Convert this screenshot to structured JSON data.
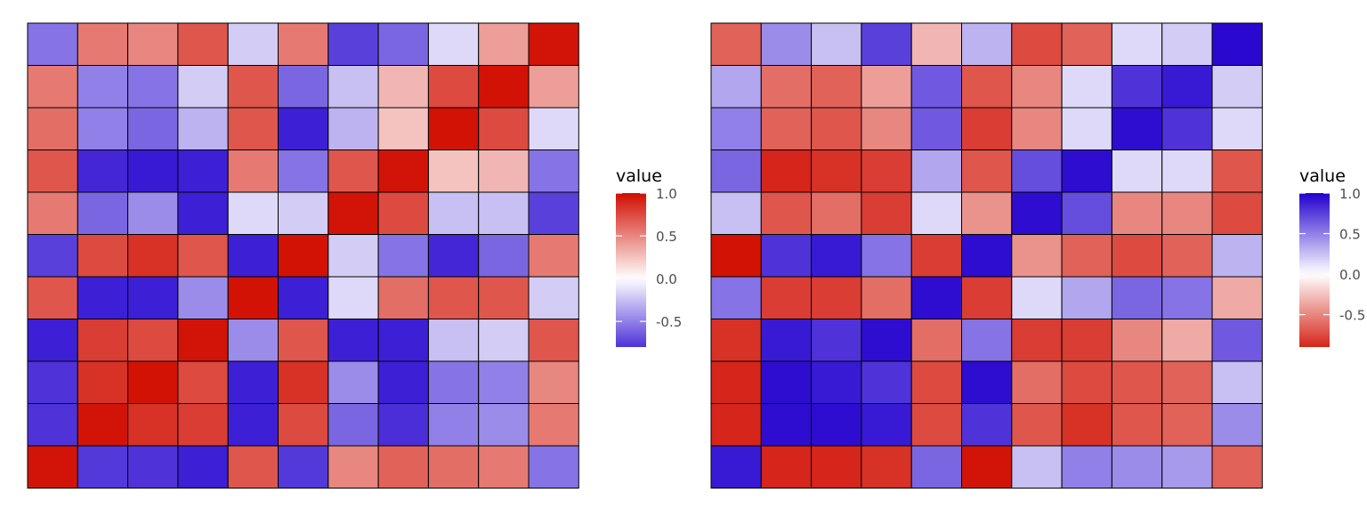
{
  "chart_data": [
    {
      "type": "heatmap",
      "rows": 11,
      "cols": 11,
      "value_range": [
        -0.8,
        1.0
      ],
      "legend": {
        "title": "value",
        "placement": "right",
        "ticks": [
          "1.0",
          "0.5",
          "0.0",
          "-0.5"
        ],
        "tick_values": [
          1.0,
          0.5,
          0.0,
          -0.5
        ],
        "colors": {
          "high": "#d10d00",
          "mid": "#ffffff",
          "low": "#2300cf"
        }
      },
      "values": [
        [
          -0.55,
          0.55,
          0.5,
          0.7,
          -0.2,
          0.55,
          -0.75,
          -0.6,
          -0.15,
          0.4,
          0.97
        ],
        [
          0.55,
          -0.5,
          -0.55,
          -0.2,
          0.7,
          -0.6,
          -0.25,
          0.3,
          0.75,
          0.98,
          0.4
        ],
        [
          0.6,
          -0.5,
          -0.6,
          -0.3,
          0.7,
          -0.88,
          -0.3,
          0.25,
          0.98,
          0.75,
          -0.15
        ],
        [
          0.7,
          -0.85,
          -0.9,
          -0.88,
          0.55,
          -0.55,
          0.7,
          0.97,
          0.25,
          0.3,
          -0.55
        ],
        [
          0.55,
          -0.6,
          -0.45,
          -0.88,
          -0.15,
          -0.2,
          0.97,
          0.75,
          -0.25,
          -0.25,
          -0.75
        ],
        [
          -0.75,
          0.75,
          0.85,
          0.7,
          -0.88,
          0.98,
          -0.2,
          -0.55,
          -0.85,
          -0.6,
          0.55
        ],
        [
          0.7,
          -0.88,
          -0.88,
          -0.45,
          0.98,
          -0.88,
          -0.15,
          0.6,
          0.7,
          0.7,
          -0.2
        ],
        [
          -0.88,
          0.8,
          0.75,
          0.97,
          -0.45,
          0.7,
          -0.88,
          -0.88,
          -0.25,
          -0.2,
          0.7
        ],
        [
          -0.8,
          0.85,
          0.98,
          0.75,
          -0.88,
          0.85,
          -0.45,
          -0.88,
          -0.55,
          -0.5,
          0.5
        ],
        [
          -0.8,
          0.97,
          0.85,
          0.8,
          -0.88,
          0.75,
          -0.6,
          -0.82,
          -0.5,
          -0.45,
          0.55
        ],
        [
          0.97,
          -0.78,
          -0.8,
          -0.88,
          0.7,
          -0.78,
          0.5,
          0.65,
          0.6,
          0.55,
          -0.55
        ]
      ]
    },
    {
      "type": "heatmap",
      "rows": 11,
      "cols": 11,
      "value_range": [
        -0.9,
        1.0
      ],
      "legend": {
        "title": "value",
        "placement": "right",
        "ticks": [
          "1.0",
          "0.5",
          "0.0",
          "-0.5"
        ],
        "tick_values": [
          1.0,
          0.5,
          0.0,
          -0.5
        ],
        "colors": {
          "high": "#2300cf",
          "mid": "#ffffff",
          "low": "#d10d00"
        }
      },
      "values": [
        [
          -0.65,
          0.45,
          0.25,
          0.75,
          -0.3,
          0.3,
          -0.75,
          -0.65,
          0.15,
          0.2,
          0.97
        ],
        [
          0.35,
          -0.6,
          -0.65,
          -0.4,
          0.65,
          -0.7,
          -0.5,
          0.15,
          0.8,
          0.9,
          0.2
        ],
        [
          0.5,
          -0.65,
          -0.7,
          -0.5,
          0.65,
          -0.8,
          -0.5,
          0.15,
          0.95,
          0.8,
          0.15
        ],
        [
          0.6,
          -0.9,
          -0.85,
          -0.8,
          0.35,
          -0.7,
          0.7,
          0.95,
          0.15,
          0.15,
          -0.7
        ],
        [
          0.25,
          -0.7,
          -0.6,
          -0.8,
          0.15,
          -0.45,
          0.95,
          0.7,
          -0.5,
          -0.5,
          -0.75
        ],
        [
          -0.98,
          0.8,
          0.9,
          0.55,
          -0.8,
          0.95,
          -0.45,
          -0.65,
          -0.75,
          -0.65,
          0.3
        ],
        [
          0.55,
          -0.8,
          -0.8,
          -0.6,
          0.95,
          -0.8,
          0.15,
          0.35,
          0.6,
          0.55,
          -0.35
        ],
        [
          -0.85,
          0.9,
          0.8,
          0.95,
          -0.6,
          0.55,
          -0.8,
          -0.8,
          -0.5,
          -0.35,
          0.65
        ],
        [
          -0.9,
          0.95,
          0.9,
          0.8,
          -0.75,
          0.95,
          -0.6,
          -0.75,
          -0.7,
          -0.65,
          0.25
        ],
        [
          -0.9,
          0.95,
          0.95,
          0.9,
          -0.75,
          0.8,
          -0.7,
          -0.85,
          -0.7,
          -0.65,
          0.45
        ],
        [
          0.9,
          -0.9,
          -0.9,
          -0.85,
          0.6,
          -0.97,
          0.25,
          0.5,
          0.45,
          0.4,
          -0.65
        ]
      ]
    }
  ]
}
